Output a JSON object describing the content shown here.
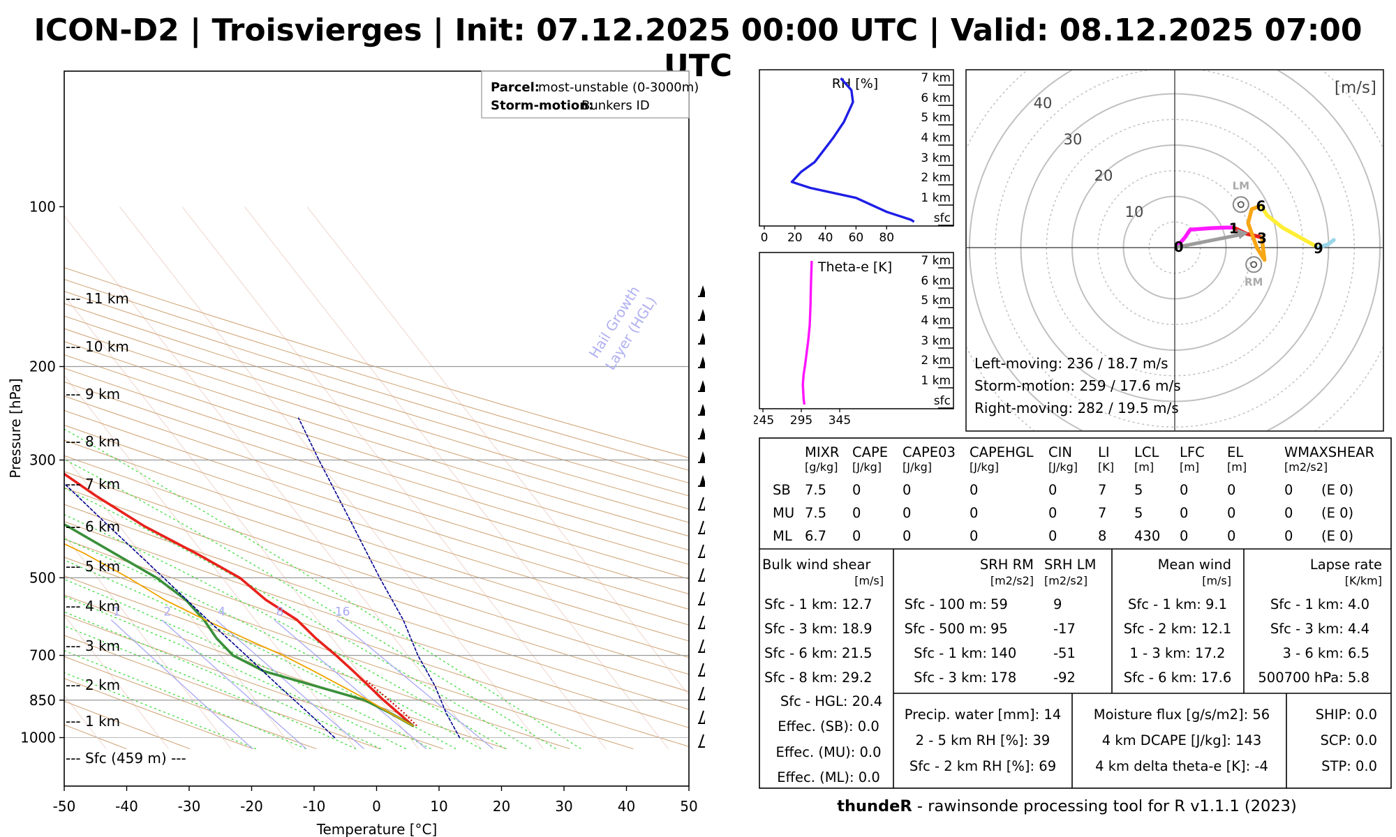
{
  "title": "ICON-D2 | Troisvierges | Init: 07.12.2025 00:00 UTC | Valid: 08.12.2025 07:00 UTC",
  "colors": {
    "temperature": "#e8211b",
    "dewpoint": "#3a8f3a",
    "parcel": "#f2a300",
    "virtual": "#cc0000",
    "rh": "#1e1ee6",
    "theta_e": "#ff14ff",
    "dry_adiabat": "#d2a97e",
    "moist_adiabat": "#3ddc3d",
    "mixing_ratio": "#a8a8f5",
    "hgl": "#000090"
  },
  "skewt": {
    "ylabel": "Pressure [hPa]",
    "xlabel": "Temperature [°C]",
    "xticks": [
      "-50",
      "-40",
      "-30",
      "-20",
      "-10",
      "0",
      "10",
      "20",
      "30",
      "40",
      "50"
    ],
    "yticks": [
      "100",
      "200",
      "300",
      "500",
      "700",
      "850",
      "1000"
    ],
    "heights": [
      "--- 11 km",
      "--- 10 km",
      "--- 9 km",
      "--- 8 km",
      "--- 7 km",
      "--- 6 km",
      "--- 5 km",
      "--- 4 km",
      "--- 3 km",
      "--- 2 km",
      "--- 1 km",
      "--- Sfc (459 m) ---"
    ],
    "mixing_labels": [
      "1",
      "2",
      "4",
      "8",
      "16"
    ],
    "hgl_label_1": "Hail Growth",
    "hgl_label_2": "Layer (HGL)",
    "legend": {
      "parcel_key": "Parcel:",
      "parcel_value": "most-unstable (0-3000m)",
      "storm_key": "Storm-motion:",
      "storm_value": "Bunkers ID"
    }
  },
  "rh_panel": {
    "title": "RH [%]",
    "xticks": [
      "0",
      "20",
      "40",
      "60",
      "80"
    ],
    "levels": [
      "7 km",
      "6 km",
      "5 km",
      "4 km",
      "3 km",
      "2 km",
      "1 km",
      "sfc"
    ]
  },
  "theta_panel": {
    "title": "Theta-e [K]",
    "xticks": [
      "245",
      "295",
      "345"
    ],
    "levels": [
      "7 km",
      "6 km",
      "5 km",
      "4 km",
      "3 km",
      "2 km",
      "1 km",
      "sfc"
    ]
  },
  "hodograph": {
    "unit": "[m/s]",
    "ring_labels": [
      "10",
      "20",
      "30",
      "40"
    ],
    "point_labels": [
      "0",
      "1",
      "3",
      "6",
      "9"
    ],
    "lm_label": "LM",
    "rm_label": "RM",
    "left_moving": "Left-moving: 236 / 18.7 m/s",
    "storm_motion": "Storm-motion: 259 / 17.6 m/s",
    "right_moving": "Right-moving: 282 / 19.5 m/s"
  },
  "indices": {
    "headers": [
      "MIXR",
      "CAPE",
      "CAPE03",
      "CAPEHGL",
      "CIN",
      "LI",
      "LCL",
      "LFC",
      "EL",
      "WMAXSHEAR"
    ],
    "units": [
      "[g/kg]",
      "[J/kg]",
      "[J/kg]",
      "[J/kg]",
      "[J/kg]",
      "[K]",
      "[m]",
      "[m]",
      "[m]",
      "[m2/s2]"
    ],
    "rows": [
      {
        "label": "SB",
        "cells": [
          "7.5",
          "0",
          "0",
          "0",
          "0",
          "7",
          "5",
          "0",
          "0",
          "0"
        ],
        "extra": "(E 0)"
      },
      {
        "label": "MU",
        "cells": [
          "7.5",
          "0",
          "0",
          "0",
          "0",
          "7",
          "5",
          "0",
          "0",
          "0"
        ],
        "extra": "(E 0)"
      },
      {
        "label": "ML",
        "cells": [
          "6.7",
          "0",
          "0",
          "0",
          "0",
          "8",
          "430",
          "0",
          "0",
          "0"
        ],
        "extra": "(E 0)"
      }
    ]
  },
  "shear": {
    "title": "Bulk wind shear",
    "unit": "[m/s]",
    "rows": [
      "Sfc - 1 km: 12.7",
      "Sfc - 3 km: 18.9",
      "Sfc - 6 km: 21.5",
      "Sfc - 8 km: 29.2",
      "Sfc - HGL: 20.4",
      "Effec. (SB): 0.0",
      "Effec. (MU): 0.0",
      "Effec. (ML): 0.0"
    ]
  },
  "srh": {
    "title_rm": "SRH RM",
    "title_lm": "SRH LM",
    "unit_rm": "[m2/s2]",
    "unit_lm": "[m2/s2]",
    "rows": [
      {
        "label": "Sfc - 100 m:",
        "rm": "59",
        "lm": "9"
      },
      {
        "label": "Sfc - 500 m:",
        "rm": "95",
        "lm": "-17"
      },
      {
        "label": "Sfc - 1 km:",
        "rm": "140",
        "lm": "-51"
      },
      {
        "label": "Sfc - 3 km:",
        "rm": "178",
        "lm": "-92"
      }
    ]
  },
  "mean_wind": {
    "title": "Mean wind",
    "unit": "[m/s]",
    "rows": [
      "Sfc - 1 km: 9.1",
      "Sfc - 2 km: 12.1",
      "1 - 3 km: 17.2",
      "Sfc - 6 km: 17.6"
    ]
  },
  "lapse": {
    "title": "Lapse rate",
    "unit": "[K/km]",
    "rows": [
      "Sfc - 1 km: 4.0",
      "Sfc - 3 km: 4.4",
      "3 - 6 km: 6.5",
      "500700 hPa: 5.8"
    ]
  },
  "moisture": {
    "rows": [
      "Precip. water [mm]: 14",
      "2 - 5 km RH [%]: 39",
      "Sfc - 2 km RH [%]: 69"
    ]
  },
  "flux": {
    "rows": [
      "Moisture flux [g/s/m2]: 56",
      "4 km DCAPE [J/kg]: 143",
      "4 km delta theta-e [K]: -4"
    ]
  },
  "composite": {
    "rows": [
      "SHIP: 0.0",
      "SCP: 0.0",
      "STP: 0.0"
    ]
  },
  "footer": {
    "tool": "thundeR",
    "rest": " - rawinsonde processing tool for R v1.1.1 (2023)"
  },
  "chart_data": [
    {
      "type": "line",
      "title": "Skew-T log-P",
      "xlabel": "Temperature [°C]",
      "ylabel": "Pressure [hPa]",
      "xlim": [
        -50,
        50
      ],
      "ylim": [
        1050,
        100
      ],
      "series": [
        {
          "name": "Temperature",
          "points": [
            [
              12,
              950
            ],
            [
              11.3,
              900
            ],
            [
              10.5,
              850
            ],
            [
              9.3,
              750
            ],
            [
              8.5,
              700
            ],
            [
              7.4,
              650
            ],
            [
              6.7,
              600
            ],
            [
              4.2,
              550
            ],
            [
              2.8,
              500
            ],
            [
              -1.1,
              450
            ],
            [
              -6,
              400
            ],
            [
              -10,
              350
            ],
            [
              -13.8,
              300
            ],
            [
              -16.5,
              275
            ],
            [
              -19.8,
              250
            ],
            [
              -22.8,
              225
            ],
            [
              -26.5,
              200
            ]
          ]
        },
        {
          "name": "Dewpoint",
          "points": [
            [
              12,
              950
            ],
            [
              10,
              900
            ],
            [
              7.5,
              850
            ],
            [
              -5,
              750
            ],
            [
              -8,
              700
            ],
            [
              -8.5,
              650
            ],
            [
              -8.2,
              600
            ],
            [
              -8.6,
              550
            ],
            [
              -10.5,
              500
            ],
            [
              -14.2,
              450
            ],
            [
              -18.3,
              400
            ],
            [
              -24.5,
              350
            ],
            [
              -32,
              300
            ],
            [
              -38,
              250
            ],
            [
              -44,
              225
            ],
            [
              -47,
              200
            ]
          ]
        },
        {
          "name": "Parcel",
          "points": [
            [
              12,
              950
            ],
            [
              10,
              900
            ],
            [
              8,
              850
            ],
            [
              3,
              750
            ],
            [
              0,
              700
            ],
            [
              -4,
              650
            ],
            [
              -8,
              600
            ],
            [
              -12,
              550
            ],
            [
              -15,
              500
            ],
            [
              -19,
              450
            ],
            [
              -24.8,
              400
            ],
            [
              -31,
              350
            ],
            [
              -38,
              300
            ],
            [
              -47,
              250
            ],
            [
              -58,
              200
            ]
          ]
        },
        {
          "name": "HGL left",
          "points": [
            [
              -2,
              1000
            ],
            [
              -3.1,
              900
            ],
            [
              -4.5,
              800
            ],
            [
              -5.9,
              700
            ],
            [
              -7.6,
              600
            ],
            [
              -9.4,
              500
            ],
            [
              -11.7,
              400
            ],
            [
              -14.5,
              300
            ],
            [
              -17,
              250
            ]
          ]
        },
        {
          "name": "HGL right",
          "points": [
            [
              18,
              1000
            ],
            [
              18.9,
              900
            ],
            [
              20.5,
              800
            ],
            [
              21.6,
              700
            ],
            [
              23.7,
              600
            ],
            [
              25.2,
              500
            ],
            [
              27.4,
              400
            ],
            [
              30.2,
              300
            ],
            [
              32.2,
              250
            ]
          ]
        }
      ]
    },
    {
      "type": "line",
      "title": "RH [%]",
      "series": [
        {
          "name": "RH",
          "points": [
            [
              98,
              0
            ],
            [
              96,
              0.1
            ],
            [
              80,
              0.5
            ],
            [
              60,
              1.2
            ],
            [
              30,
              1.7
            ],
            [
              18,
              2
            ],
            [
              24,
              2.5
            ],
            [
              33,
              3
            ],
            [
              40,
              3.7
            ],
            [
              45,
              4.2
            ],
            [
              52,
              5
            ],
            [
              58,
              6
            ],
            [
              57,
              6.6
            ],
            [
              50,
              7.2
            ]
          ]
        }
      ]
    },
    {
      "type": "line",
      "title": "Theta-e [K]",
      "series": [
        {
          "name": "Theta-e",
          "points": [
            [
              299,
              0
            ],
            [
              298,
              0.3
            ],
            [
              297,
              1
            ],
            [
              298,
              1.5
            ],
            [
              300,
              2
            ],
            [
              302,
              2.6
            ],
            [
              304,
              3.2
            ],
            [
              306,
              4
            ],
            [
              307,
              5
            ],
            [
              307.5,
              6
            ],
            [
              308.5,
              7.2
            ]
          ]
        }
      ]
    },
    {
      "type": "line",
      "title": "Hodograph [m/s]",
      "series": [
        {
          "name": "0-1 km",
          "points": [
            [
              0.5,
              0.3
            ],
            [
              2,
              2
            ],
            [
              3,
              3.5
            ],
            [
              7,
              3.8
            ],
            [
              10,
              3.9
            ],
            [
              11.5,
              3.9
            ]
          ]
        },
        {
          "name": "1-3 km",
          "points": [
            [
              11.5,
              3.9
            ],
            [
              14,
              2.7
            ],
            [
              17,
              2.0
            ]
          ]
        },
        {
          "name": "3-6 km",
          "points": [
            [
              17,
              2.0
            ],
            [
              17.2,
              0
            ],
            [
              17.5,
              -2.4
            ],
            [
              16,
              0
            ],
            [
              14.3,
              4.8
            ],
            [
              15,
              7.5
            ],
            [
              16.8,
              8.2
            ]
          ]
        },
        {
          "name": "6-9 km",
          "points": [
            [
              16.8,
              8.2
            ],
            [
              18,
              6.3
            ],
            [
              21,
              3.9
            ],
            [
              28,
              0
            ]
          ]
        },
        {
          "name": "9+ km",
          "points": [
            [
              28,
              0
            ],
            [
              30,
              0.7
            ],
            [
              31,
              1.5
            ]
          ]
        }
      ],
      "storm_vectors": {
        "LM": [
          12.9,
          8.4
        ],
        "RM": [
          15.4,
          -3.3
        ]
      }
    }
  ]
}
